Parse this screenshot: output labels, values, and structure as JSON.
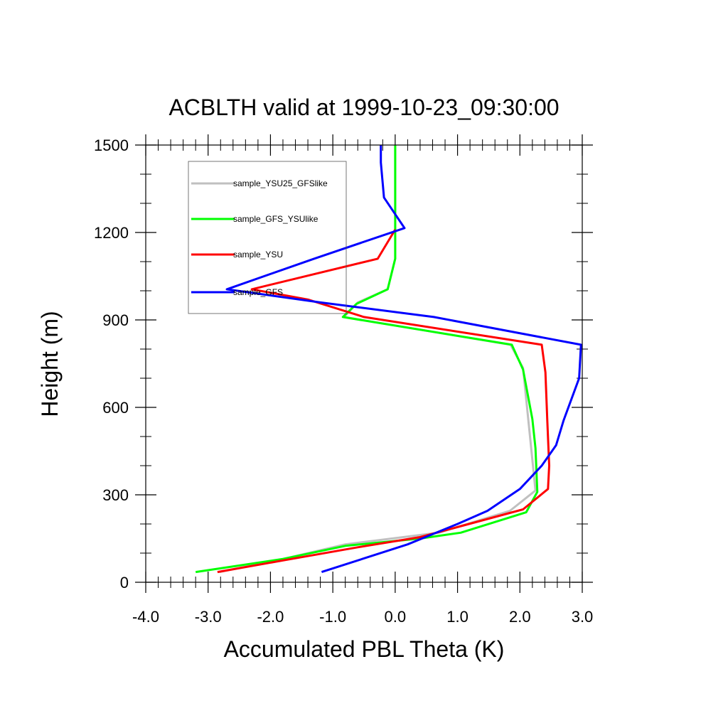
{
  "chart_data": {
    "type": "line",
    "title": "ACBLTH valid at 1999-10-23_09:30:00",
    "xlabel": "Accumulated PBL Theta (K)",
    "ylabel": "Height (m)",
    "xlim": [
      -4.0,
      3.0
    ],
    "ylim": [
      0,
      1500
    ],
    "x_ticks": [
      -4.0,
      -3.0,
      -2.0,
      -1.0,
      0.0,
      1.0,
      2.0,
      3.0
    ],
    "x_tick_labels": [
      "-4.0",
      "-3.0",
      "-2.0",
      "-1.0",
      "0.0",
      "1.0",
      "2.0",
      "3.0"
    ],
    "y_ticks": [
      0,
      300,
      600,
      900,
      1200,
      1500
    ],
    "y_tick_labels": [
      "0",
      "300",
      "600",
      "900",
      "1200",
      "1500"
    ],
    "grid": false,
    "legend_position": "top-left",
    "series": [
      {
        "name": "sample_YSU25_GFSlike",
        "color": "#c0c0c0",
        "x": [
          -2.82,
          -1.9,
          -0.8,
          0.7,
          1.84,
          2.25,
          2.05,
          1.85,
          -0.82,
          -0.6,
          -0.12,
          0.0,
          0.0,
          0.0
        ],
        "y": [
          35,
          75,
          130,
          170,
          245,
          315,
          735,
          815,
          910,
          960,
          1005,
          1110,
          1200,
          1500
        ]
      },
      {
        "name": "sample_GFS_YSUlike",
        "color": "#00ff00",
        "x": [
          -3.2,
          -1.8,
          -0.8,
          0.4,
          1.05,
          2.1,
          2.28,
          2.25,
          2.2,
          2.05,
          1.87,
          -0.84,
          -0.62,
          -0.12,
          0.0,
          0.0,
          0.0
        ],
        "y": [
          35,
          80,
          125,
          150,
          170,
          240,
          310,
          460,
          560,
          730,
          815,
          910,
          955,
          1005,
          1110,
          1200,
          1500
        ]
      },
      {
        "name": "sample_YSU",
        "color": "#ff0000",
        "x": [
          -2.85,
          -1.8,
          -0.6,
          0.4,
          1.1,
          2.05,
          2.45,
          2.47,
          2.44,
          2.41,
          2.35,
          -0.5,
          -1.4,
          -2.3,
          -0.28,
          0.0
        ],
        "y": [
          35,
          75,
          120,
          155,
          195,
          250,
          320,
          400,
          550,
          720,
          815,
          910,
          970,
          1005,
          1110,
          1210
        ]
      },
      {
        "name": "sample_GFS",
        "color": "#0000ff",
        "x": [
          -1.18,
          0.2,
          1.0,
          1.48,
          2.0,
          2.35,
          2.58,
          2.7,
          2.95,
          2.98,
          0.62,
          -1.2,
          -2.7,
          -1.3,
          0.15,
          -0.18,
          -0.23,
          -0.23
        ],
        "y": [
          35,
          130,
          200,
          245,
          320,
          400,
          470,
          555,
          700,
          815,
          910,
          960,
          1005,
          1110,
          1215,
          1320,
          1440,
          1500
        ]
      }
    ]
  }
}
